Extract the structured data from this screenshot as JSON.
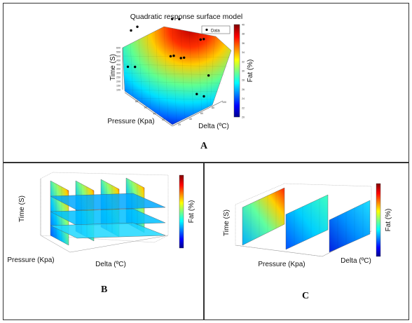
{
  "chart_data": [
    {
      "type": "surface3d",
      "panel": "A",
      "title": "Quadratic response surface model",
      "xlabel": "Pressure (Kpa)",
      "ylabel": "Delta (ºC)",
      "zlabel": "Time (S)",
      "colorbar_label": "Fat (%)",
      "legend": "Data",
      "x_ticks": [
        "80",
        "60",
        "40",
        "20"
      ],
      "y_ticks": [
        "20",
        "40",
        "60",
        "80",
        "100"
      ],
      "z_ticks": [
        "100",
        "150",
        "200",
        "250",
        "300",
        "350",
        "400",
        "450",
        "500",
        "550",
        "600"
      ],
      "colorbar_ticks": [
        "20",
        "22",
        "24",
        "26",
        "28",
        "30",
        "32",
        "34",
        "36",
        "38",
        "40"
      ],
      "colorbar_range": [
        20,
        40
      ],
      "data_points": [
        {
          "p": 60,
          "d": 70,
          "t": 590
        },
        {
          "p": 55,
          "d": 75,
          "t": 600
        },
        {
          "p": 80,
          "d": 30,
          "t": 500
        },
        {
          "p": 80,
          "d": 40,
          "t": 505
        },
        {
          "p": 40,
          "d": 90,
          "t": 450
        },
        {
          "p": 40,
          "d": 95,
          "t": 440
        },
        {
          "p": 50,
          "d": 55,
          "t": 350
        },
        {
          "p": 50,
          "d": 60,
          "t": 340
        },
        {
          "p": 45,
          "d": 65,
          "t": 330
        },
        {
          "p": 45,
          "d": 70,
          "t": 320
        },
        {
          "p": 75,
          "d": 30,
          "t": 200
        },
        {
          "p": 80,
          "d": 25,
          "t": 190
        },
        {
          "p": 30,
          "d": 90,
          "t": 180
        },
        {
          "p": 20,
          "d": 70,
          "t": 100
        },
        {
          "p": 25,
          "d": 65,
          "t": 110
        }
      ]
    },
    {
      "type": "slice3d",
      "panel": "B",
      "xlabel": "Delta (ºC)",
      "ylabel": "Pressure (Kpa)",
      "zlabel": "Time (S)",
      "colorbar_label": "Fat (%)"
    },
    {
      "type": "slice3d",
      "panel": "C",
      "xlabel": "Pressure (Kpa)",
      "ylabel": "Delta (ºC)",
      "zlabel": "Time (S)",
      "colorbar_label": "Fat (%)"
    }
  ],
  "panels": {
    "a": "A",
    "b": "B",
    "c": "C"
  }
}
